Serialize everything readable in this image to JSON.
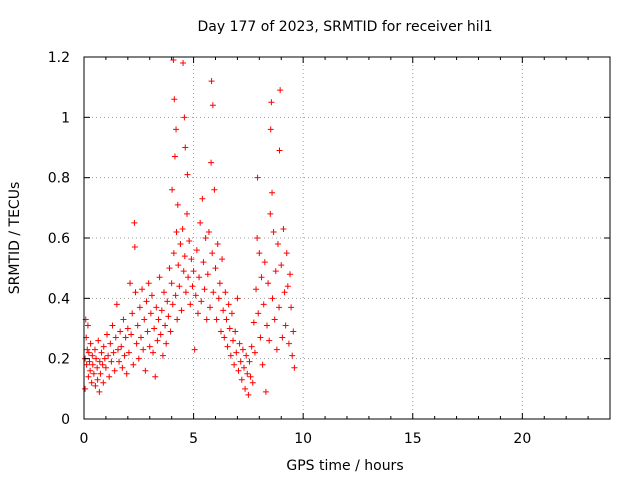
{
  "chart_data": {
    "type": "scatter",
    "title": "Day 177 of 2023, SRMTID for receiver hil1",
    "xlabel": "GPS time / hours",
    "ylabel": "SRMTID / TECUs",
    "xlim": [
      0,
      24
    ],
    "ylim": [
      0,
      1.2
    ],
    "xticks": [
      0,
      5,
      10,
      15,
      20
    ],
    "xtick_labels": [
      "0",
      "5",
      "10",
      "15",
      "20"
    ],
    "yticks": [
      0,
      0.2,
      0.4,
      0.6,
      0.8,
      1.0,
      1.2
    ],
    "ytick_labels": [
      "0",
      "0.2",
      "0.4",
      "0.6",
      "0.8",
      "1",
      "1.2"
    ],
    "grid": true,
    "marker": "+",
    "color": "#ff0000",
    "series": [
      {
        "name": "hil1",
        "points": [
          [
            0.05,
            0.1
          ],
          [
            0.05,
            0.2
          ],
          [
            0.08,
            0.33
          ],
          [
            0.1,
            0.27
          ],
          [
            0.12,
            0.18
          ],
          [
            0.15,
            0.23
          ],
          [
            0.18,
            0.31
          ],
          [
            0.2,
            0.14
          ],
          [
            0.22,
            0.22
          ],
          [
            0.25,
            0.19
          ],
          [
            0.28,
            0.16
          ],
          [
            0.3,
            0.25
          ],
          [
            0.35,
            0.12
          ],
          [
            0.38,
            0.21
          ],
          [
            0.4,
            0.18
          ],
          [
            0.45,
            0.15
          ],
          [
            0.5,
            0.23
          ],
          [
            0.52,
            0.11
          ],
          [
            0.55,
            0.2
          ],
          [
            0.6,
            0.17
          ],
          [
            0.62,
            0.13
          ],
          [
            0.65,
            0.26
          ],
          [
            0.7,
            0.09
          ],
          [
            0.72,
            0.19
          ],
          [
            0.75,
            0.15
          ],
          [
            0.8,
            0.22
          ],
          [
            0.85,
            0.18
          ],
          [
            0.88,
            0.12
          ],
          [
            0.9,
            0.24
          ],
          [
            0.95,
            0.2
          ],
          [
            1.0,
            0.17
          ],
          [
            1.05,
            0.28
          ],
          [
            1.1,
            0.21
          ],
          [
            1.15,
            0.14
          ],
          [
            1.2,
            0.25
          ],
          [
            1.25,
            0.19
          ],
          [
            1.3,
            0.31
          ],
          [
            1.35,
            0.22
          ],
          [
            1.4,
            0.16
          ],
          [
            1.45,
            0.27
          ],
          [
            1.5,
            0.38
          ],
          [
            1.55,
            0.23
          ],
          [
            1.6,
            0.19
          ],
          [
            1.65,
            0.29
          ],
          [
            1.7,
            0.24
          ],
          [
            1.75,
            0.17
          ],
          [
            1.8,
            0.33
          ],
          [
            1.85,
            0.21
          ],
          [
            1.9,
            0.27
          ],
          [
            1.95,
            0.15
          ],
          [
            2.0,
            0.3
          ],
          [
            2.05,
            0.22
          ],
          [
            2.1,
            0.45
          ],
          [
            2.15,
            0.28
          ],
          [
            2.2,
            0.35
          ],
          [
            2.25,
            0.18
          ],
          [
            2.3,
            0.65
          ],
          [
            2.32,
            0.57
          ],
          [
            2.35,
            0.42
          ],
          [
            2.4,
            0.25
          ],
          [
            2.45,
            0.31
          ],
          [
            2.5,
            0.2
          ],
          [
            2.55,
            0.37
          ],
          [
            2.6,
            0.27
          ],
          [
            2.65,
            0.43
          ],
          [
            2.7,
            0.23
          ],
          [
            2.75,
            0.33
          ],
          [
            2.8,
            0.16
          ],
          [
            2.85,
            0.39
          ],
          [
            2.9,
            0.29
          ],
          [
            2.95,
            0.45
          ],
          [
            3.0,
            0.24
          ],
          [
            3.05,
            0.35
          ],
          [
            3.1,
            0.41
          ],
          [
            3.15,
            0.22
          ],
          [
            3.2,
            0.3
          ],
          [
            3.25,
            0.14
          ],
          [
            3.3,
            0.37
          ],
          [
            3.35,
            0.26
          ],
          [
            3.4,
            0.33
          ],
          [
            3.45,
            0.47
          ],
          [
            3.5,
            0.28
          ],
          [
            3.55,
            0.36
          ],
          [
            3.6,
            0.21
          ],
          [
            3.65,
            0.42
          ],
          [
            3.7,
            0.31
          ],
          [
            3.75,
            0.25
          ],
          [
            3.8,
            0.39
          ],
          [
            3.85,
            0.34
          ],
          [
            3.9,
            0.5
          ],
          [
            3.95,
            0.29
          ],
          [
            4.0,
            0.45
          ],
          [
            4.02,
            0.76
          ],
          [
            4.05,
            0.38
          ],
          [
            4.08,
            1.19
          ],
          [
            4.1,
            0.55
          ],
          [
            4.12,
            1.06
          ],
          [
            4.15,
            0.87
          ],
          [
            4.18,
            0.41
          ],
          [
            4.2,
            0.96
          ],
          [
            4.22,
            0.62
          ],
          [
            4.25,
            0.33
          ],
          [
            4.28,
            0.71
          ],
          [
            4.3,
            0.51
          ],
          [
            4.35,
            0.44
          ],
          [
            4.4,
            0.58
          ],
          [
            4.45,
            0.36
          ],
          [
            4.5,
            0.63
          ],
          [
            4.52,
            1.18
          ],
          [
            4.55,
            0.49
          ],
          [
            4.58,
            1.0
          ],
          [
            4.6,
            0.54
          ],
          [
            4.62,
            0.9
          ],
          [
            4.65,
            0.42
          ],
          [
            4.7,
            0.68
          ],
          [
            4.72,
            0.81
          ],
          [
            4.75,
            0.47
          ],
          [
            4.8,
            0.59
          ],
          [
            4.85,
            0.38
          ],
          [
            4.9,
            0.53
          ],
          [
            4.95,
            0.44
          ],
          [
            5.0,
            0.49
          ],
          [
            5.05,
            0.23
          ],
          [
            5.1,
            0.41
          ],
          [
            5.15,
            0.56
          ],
          [
            5.2,
            0.35
          ],
          [
            5.25,
            0.47
          ],
          [
            5.3,
            0.65
          ],
          [
            5.35,
            0.39
          ],
          [
            5.4,
            0.73
          ],
          [
            5.45,
            0.52
          ],
          [
            5.5,
            0.43
          ],
          [
            5.55,
            0.6
          ],
          [
            5.6,
            0.33
          ],
          [
            5.65,
            0.48
          ],
          [
            5.7,
            0.62
          ],
          [
            5.75,
            0.37
          ],
          [
            5.8,
            0.85
          ],
          [
            5.82,
            1.12
          ],
          [
            5.85,
            0.55
          ],
          [
            5.88,
            1.04
          ],
          [
            5.9,
            0.42
          ],
          [
            5.95,
            0.76
          ],
          [
            6.0,
            0.5
          ],
          [
            6.05,
            0.33
          ],
          [
            6.1,
            0.58
          ],
          [
            6.15,
            0.4
          ],
          [
            6.2,
            0.45
          ],
          [
            6.25,
            0.29
          ],
          [
            6.3,
            0.53
          ],
          [
            6.35,
            0.36
          ],
          [
            6.4,
            0.27
          ],
          [
            6.45,
            0.42
          ],
          [
            6.5,
            0.33
          ],
          [
            6.55,
            0.24
          ],
          [
            6.6,
            0.38
          ],
          [
            6.65,
            0.3
          ],
          [
            6.7,
            0.21
          ],
          [
            6.75,
            0.35
          ],
          [
            6.8,
            0.26
          ],
          [
            6.85,
            0.18
          ],
          [
            6.9,
            0.29
          ],
          [
            6.95,
            0.22
          ],
          [
            7.0,
            0.4
          ],
          [
            7.05,
            0.16
          ],
          [
            7.1,
            0.25
          ],
          [
            7.15,
            0.19
          ],
          [
            7.2,
            0.13
          ],
          [
            7.25,
            0.23
          ],
          [
            7.3,
            0.17
          ],
          [
            7.35,
            0.1
          ],
          [
            7.4,
            0.21
          ],
          [
            7.45,
            0.15
          ],
          [
            7.5,
            0.08
          ],
          [
            7.55,
            0.19
          ],
          [
            7.6,
            0.14
          ],
          [
            7.65,
            0.24
          ],
          [
            7.7,
            0.12
          ],
          [
            7.75,
            0.32
          ],
          [
            7.8,
            0.22
          ],
          [
            7.85,
            0.43
          ],
          [
            7.9,
            0.6
          ],
          [
            7.92,
            0.8
          ],
          [
            7.95,
            0.35
          ],
          [
            8.0,
            0.55
          ],
          [
            8.05,
            0.27
          ],
          [
            8.1,
            0.47
          ],
          [
            8.15,
            0.18
          ],
          [
            8.2,
            0.38
          ],
          [
            8.25,
            0.52
          ],
          [
            8.3,
            0.09
          ],
          [
            8.35,
            0.31
          ],
          [
            8.4,
            0.45
          ],
          [
            8.45,
            0.26
          ],
          [
            8.5,
            0.68
          ],
          [
            8.52,
            0.96
          ],
          [
            8.55,
            1.05
          ],
          [
            8.58,
            0.75
          ],
          [
            8.6,
            0.4
          ],
          [
            8.65,
            0.62
          ],
          [
            8.7,
            0.33
          ],
          [
            8.75,
            0.49
          ],
          [
            8.8,
            0.23
          ],
          [
            8.85,
            0.58
          ],
          [
            8.9,
            0.37
          ],
          [
            8.92,
            0.89
          ],
          [
            8.95,
            1.09
          ],
          [
            9.0,
            0.51
          ],
          [
            9.05,
            0.27
          ],
          [
            9.1,
            0.63
          ],
          [
            9.15,
            0.42
          ],
          [
            9.2,
            0.31
          ],
          [
            9.25,
            0.55
          ],
          [
            9.3,
            0.44
          ],
          [
            9.35,
            0.25
          ],
          [
            9.4,
            0.48
          ],
          [
            9.45,
            0.37
          ],
          [
            9.5,
            0.21
          ],
          [
            9.55,
            0.29
          ],
          [
            9.6,
            0.17
          ]
        ]
      }
    ]
  }
}
